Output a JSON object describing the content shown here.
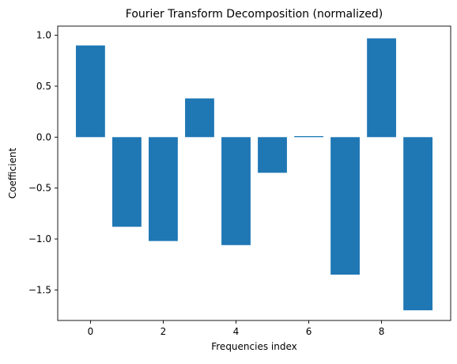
{
  "chart_data": {
    "type": "bar",
    "title": "Fourier Transform Decomposition (normalized)",
    "xlabel": "Frequencies index",
    "ylabel": "Coefficient",
    "categories": [
      0,
      1,
      2,
      3,
      4,
      5,
      6,
      7,
      8,
      9
    ],
    "values": [
      0.9,
      -0.88,
      -1.02,
      0.38,
      -1.06,
      -0.35,
      0.01,
      -1.35,
      0.97,
      -1.7
    ],
    "xlim": [
      -0.9,
      9.9
    ],
    "ylim": [
      -1.8,
      1.09
    ],
    "x_ticks": [
      0,
      2,
      4,
      6,
      8
    ],
    "y_ticks": [
      1.0,
      0.5,
      0.0,
      -0.5,
      -1.0,
      -1.5
    ],
    "x_tick_labels": [
      "0",
      "2",
      "4",
      "6",
      "8"
    ],
    "y_tick_labels": [
      "1.0",
      "0.5",
      "0.0",
      "−0.5",
      "−1.0",
      "−1.5"
    ],
    "bar_color": "#1f77b4",
    "grid": false,
    "legend": "none"
  }
}
